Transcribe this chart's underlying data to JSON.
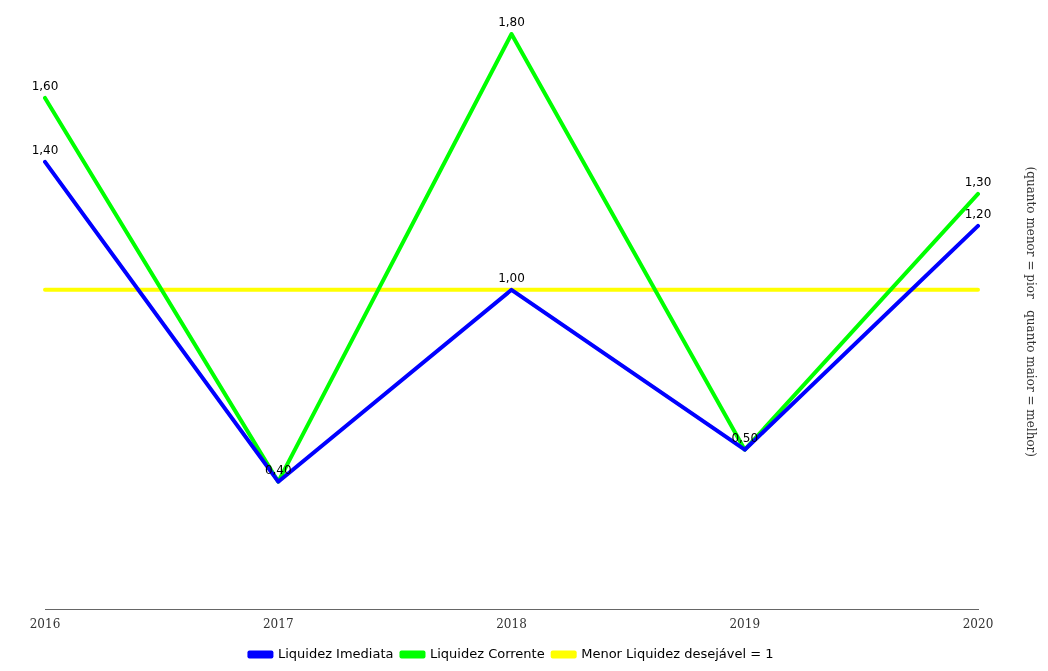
{
  "chart_data": {
    "type": "line",
    "categories": [
      "2016",
      "2017",
      "2018",
      "2019",
      "2020"
    ],
    "y2label": "(quanto menor = pior   quanto maior = melhor)",
    "series": [
      {
        "name": "Liquidez Imediata",
        "color": "#0000ff",
        "values": [
          1.4,
          0.4,
          1.0,
          0.5,
          1.2
        ],
        "value_labels": [
          "1,40",
          "0,40",
          "1,00",
          "0,50",
          "1,20"
        ]
      },
      {
        "name": "Liquidez Corrente",
        "color": "#00ff00",
        "values": [
          1.6,
          0.4,
          1.8,
          0.5,
          1.3
        ],
        "value_labels": [
          "1,60",
          null,
          "1,80",
          null,
          "1,30"
        ]
      },
      {
        "name": "Menor Liquidez desejável = 1",
        "color": "#ffff00",
        "values": [
          1,
          1,
          1,
          1,
          1
        ]
      }
    ],
    "legend": "bottom",
    "grid": false,
    "marker": "none",
    "line_style": "solid"
  }
}
